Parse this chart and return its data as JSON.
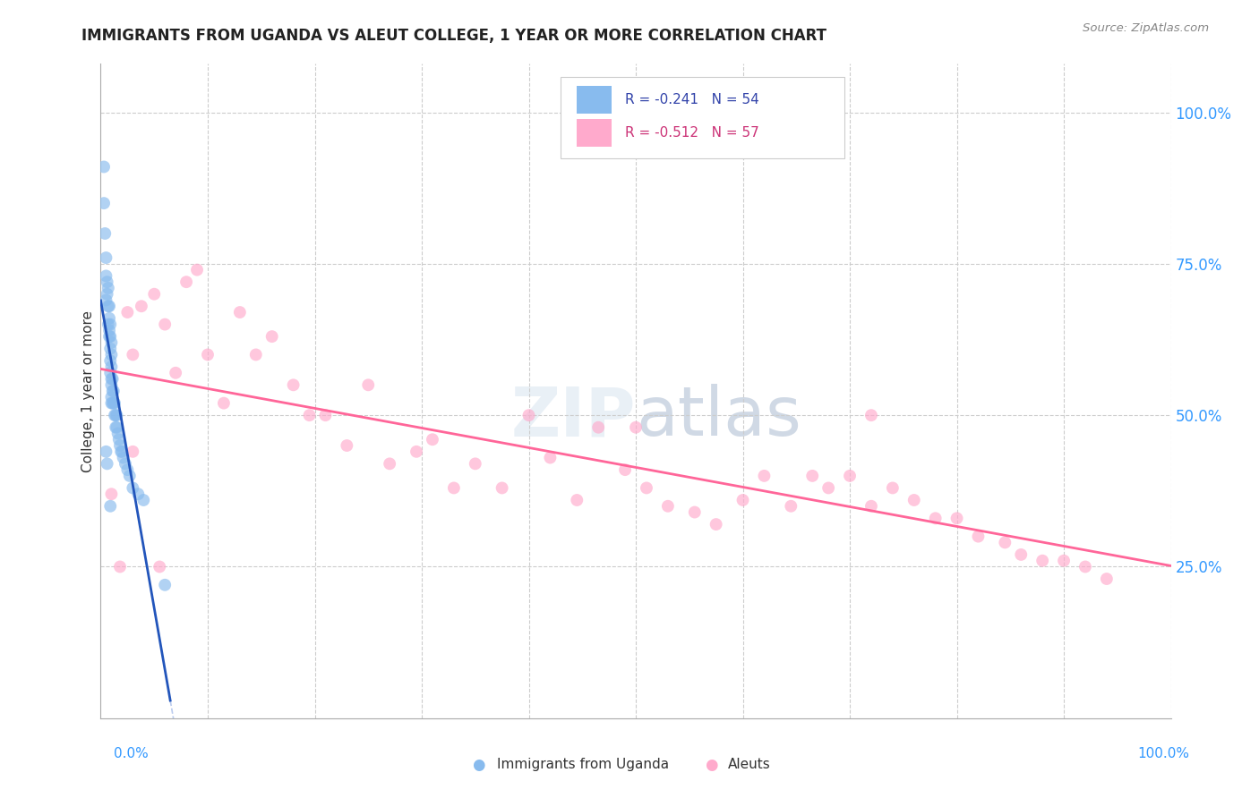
{
  "title": "IMMIGRANTS FROM UGANDA VS ALEUT COLLEGE, 1 YEAR OR MORE CORRELATION CHART",
  "source": "Source: ZipAtlas.com",
  "ylabel": "College, 1 year or more",
  "legend1_label": "Immigrants from Uganda",
  "legend2_label": "Aleuts",
  "R1": -0.241,
  "N1": 54,
  "R2": -0.512,
  "N2": 57,
  "blue_color": "#88BBEE",
  "pink_color": "#FFAACC",
  "blue_line_color": "#2255BB",
  "pink_line_color": "#FF6699",
  "dashed_color": "#BBCCEE",
  "blue_x": [
    0.003,
    0.003,
    0.004,
    0.005,
    0.005,
    0.005,
    0.006,
    0.006,
    0.007,
    0.007,
    0.007,
    0.008,
    0.008,
    0.008,
    0.008,
    0.009,
    0.009,
    0.009,
    0.009,
    0.009,
    0.01,
    0.01,
    0.01,
    0.01,
    0.01,
    0.01,
    0.01,
    0.011,
    0.011,
    0.011,
    0.012,
    0.012,
    0.013,
    0.013,
    0.014,
    0.014,
    0.015,
    0.015,
    0.016,
    0.017,
    0.018,
    0.019,
    0.02,
    0.021,
    0.023,
    0.025,
    0.027,
    0.03,
    0.035,
    0.04,
    0.005,
    0.006,
    0.009,
    0.06
  ],
  "blue_y": [
    0.91,
    0.85,
    0.8,
    0.76,
    0.73,
    0.69,
    0.72,
    0.7,
    0.71,
    0.68,
    0.65,
    0.68,
    0.66,
    0.64,
    0.63,
    0.65,
    0.63,
    0.61,
    0.59,
    0.57,
    0.62,
    0.6,
    0.58,
    0.56,
    0.55,
    0.53,
    0.52,
    0.56,
    0.54,
    0.52,
    0.54,
    0.52,
    0.52,
    0.5,
    0.5,
    0.48,
    0.5,
    0.48,
    0.47,
    0.46,
    0.45,
    0.44,
    0.44,
    0.43,
    0.42,
    0.41,
    0.4,
    0.38,
    0.37,
    0.36,
    0.44,
    0.42,
    0.35,
    0.22
  ],
  "pink_x": [
    0.01,
    0.018,
    0.025,
    0.03,
    0.038,
    0.05,
    0.06,
    0.07,
    0.08,
    0.09,
    0.1,
    0.115,
    0.13,
    0.145,
    0.16,
    0.18,
    0.195,
    0.21,
    0.23,
    0.25,
    0.27,
    0.295,
    0.31,
    0.33,
    0.35,
    0.375,
    0.4,
    0.42,
    0.445,
    0.465,
    0.49,
    0.51,
    0.53,
    0.555,
    0.575,
    0.6,
    0.62,
    0.645,
    0.665,
    0.68,
    0.7,
    0.72,
    0.74,
    0.76,
    0.78,
    0.8,
    0.82,
    0.845,
    0.86,
    0.88,
    0.9,
    0.92,
    0.94,
    0.03,
    0.055,
    0.5,
    0.72
  ],
  "pink_y": [
    0.37,
    0.25,
    0.67,
    0.6,
    0.68,
    0.7,
    0.65,
    0.57,
    0.72,
    0.74,
    0.6,
    0.52,
    0.67,
    0.6,
    0.63,
    0.55,
    0.5,
    0.5,
    0.45,
    0.55,
    0.42,
    0.44,
    0.46,
    0.38,
    0.42,
    0.38,
    0.5,
    0.43,
    0.36,
    0.48,
    0.41,
    0.38,
    0.35,
    0.34,
    0.32,
    0.36,
    0.4,
    0.35,
    0.4,
    0.38,
    0.4,
    0.35,
    0.38,
    0.36,
    0.33,
    0.33,
    0.3,
    0.29,
    0.27,
    0.26,
    0.26,
    0.25,
    0.23,
    0.44,
    0.25,
    0.48,
    0.5
  ]
}
